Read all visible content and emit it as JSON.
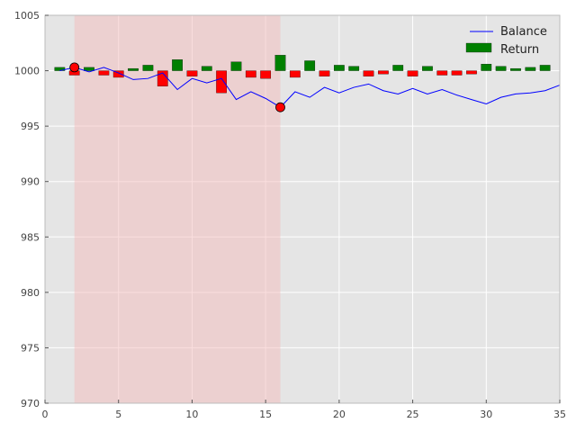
{
  "chart_data": {
    "type": "bar",
    "title": "",
    "xlabel": "",
    "ylabel": "",
    "xlim": [
      0,
      35
    ],
    "ylim": [
      970,
      1005
    ],
    "xticks": [
      0,
      5,
      10,
      15,
      20,
      25,
      30,
      35
    ],
    "yticks": [
      970,
      975,
      980,
      985,
      990,
      995,
      1000,
      1005
    ],
    "grid": true,
    "background_color": "#e5e5e5",
    "grid_color": "#ffffff",
    "legend_position": "top-right",
    "legend": [
      {
        "label": "Balance",
        "kind": "line",
        "color": "#0000ff"
      },
      {
        "label": "Return",
        "kind": "patch",
        "color": "#008000"
      }
    ],
    "highlight_region": {
      "x_start": 2,
      "x_end": 16,
      "color": "#f5b5b5",
      "opacity": 0.45
    },
    "markers": [
      {
        "x": 2,
        "y": 1000.3,
        "color": "#ff0000"
      },
      {
        "x": 16,
        "y": 996.7,
        "color": "#ff0000"
      }
    ],
    "balance": {
      "name": "Balance",
      "color": "#0000ff",
      "x": [
        1,
        2,
        3,
        4,
        5,
        6,
        7,
        8,
        9,
        10,
        11,
        12,
        13,
        14,
        15,
        16,
        17,
        18,
        19,
        20,
        21,
        22,
        23,
        24,
        25,
        26,
        27,
        28,
        29,
        30,
        31,
        32,
        33,
        34,
        35
      ],
      "y": [
        1000.0,
        1000.3,
        999.9,
        1000.3,
        999.8,
        999.2,
        999.3,
        999.8,
        998.3,
        999.3,
        998.9,
        999.3,
        997.4,
        998.1,
        997.5,
        996.7,
        998.1,
        997.6,
        998.5,
        998.0,
        998.5,
        998.8,
        998.2,
        997.9,
        998.4,
        997.9,
        998.3,
        997.8,
        997.4,
        997.0,
        997.6,
        997.9,
        998.0,
        998.2,
        998.7
      ]
    },
    "returns": {
      "name": "Return",
      "positive_color": "#008000",
      "negative_color": "#ff0000",
      "bar_width": 0.7,
      "x": [
        1,
        2,
        3,
        4,
        5,
        6,
        7,
        8,
        9,
        10,
        11,
        12,
        13,
        14,
        15,
        16,
        17,
        18,
        19,
        20,
        21,
        22,
        23,
        24,
        25,
        26,
        27,
        28,
        29,
        30,
        31,
        32,
        33,
        34,
        35
      ],
      "values": [
        0.3,
        -0.4,
        0.3,
        -0.4,
        -0.6,
        0.2,
        0.5,
        -1.4,
        1.0,
        -0.5,
        0.4,
        -2.0,
        0.8,
        -0.6,
        -0.7,
        1.4,
        -0.6,
        0.9,
        -0.5,
        0.5,
        0.4,
        -0.5,
        -0.3,
        0.5,
        -0.5,
        0.4,
        -0.4,
        -0.4,
        -0.3,
        0.6,
        0.4,
        0.2,
        0.3,
        0.5,
        0.0
      ]
    }
  }
}
